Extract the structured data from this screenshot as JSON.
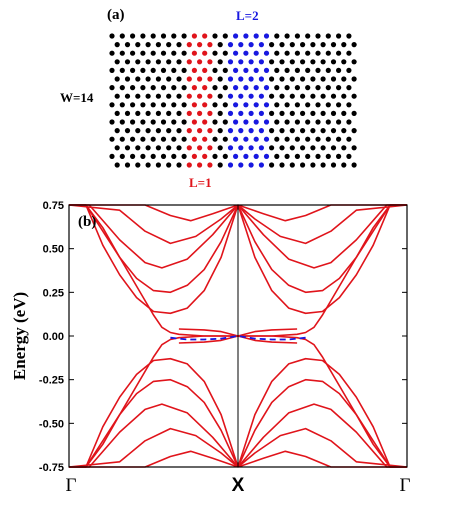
{
  "panel_a": {
    "label": "(a)",
    "width_label": "W=14",
    "left_label": "L=1",
    "top_label": "L=2",
    "colors": {
      "default": "#000000",
      "highlight_1": "#e0141b",
      "highlight_2": "#1818e0"
    }
  },
  "chart_data": {
    "type": "line",
    "panel_label": "(b)",
    "ylabel": "Energy (eV)",
    "ylim": [
      -0.75,
      0.75
    ],
    "yticks": [
      "0.75",
      "0.50",
      "0.25",
      "0.00",
      "-0.25",
      "-0.50",
      "-0.75"
    ],
    "ytick_values": [
      0.75,
      0.5,
      0.25,
      0.0,
      -0.25,
      -0.5,
      -0.75
    ],
    "xticks": [
      "Γ",
      "X",
      "Γ"
    ],
    "xtick_values": [
      0,
      1,
      2
    ],
    "xlim": [
      0,
      2
    ],
    "vertical_line_at": 1,
    "colors": {
      "bands": "#e0141b",
      "dashed": "#1818e0",
      "frame": "#000000"
    },
    "series": [
      {
        "style": "solid",
        "x": [
          0.0,
          0.1,
          0.2,
          0.3,
          0.4,
          0.5,
          0.6,
          0.7,
          0.8,
          0.9,
          1.0
        ],
        "y": [
          0.75,
          0.75,
          0.52,
          0.35,
          0.22,
          0.14,
          0.13,
          0.16,
          0.26,
          0.45,
          0.75
        ]
      },
      {
        "style": "solid",
        "x": [
          0.0,
          0.1,
          0.2,
          0.3,
          0.4,
          0.5,
          0.6,
          0.7,
          0.8,
          0.9,
          1.0
        ],
        "y": [
          0.75,
          0.75,
          0.62,
          0.45,
          0.33,
          0.26,
          0.25,
          0.29,
          0.38,
          0.54,
          0.75
        ]
      },
      {
        "style": "solid",
        "x": [
          0.0,
          0.12,
          0.3,
          0.45,
          0.55,
          0.7,
          0.85,
          1.0
        ],
        "y": [
          0.75,
          0.75,
          0.55,
          0.42,
          0.39,
          0.44,
          0.58,
          0.75
        ]
      },
      {
        "style": "solid",
        "x": [
          0.0,
          0.3,
          0.45,
          0.6,
          0.75,
          0.9,
          1.0
        ],
        "y": [
          0.75,
          0.72,
          0.6,
          0.53,
          0.57,
          0.67,
          0.75
        ]
      },
      {
        "style": "solid",
        "x": [
          0.0,
          0.45,
          0.6,
          0.72,
          0.85,
          1.0
        ],
        "y": [
          0.75,
          0.75,
          0.69,
          0.66,
          0.7,
          0.75
        ]
      },
      {
        "style": "solid",
        "x": [
          0.0,
          0.1,
          0.3,
          0.5,
          0.55,
          0.6,
          0.65,
          0.8,
          1.0
        ],
        "y": [
          0.75,
          0.75,
          0.45,
          0.12,
          0.05,
          0.02,
          0.01,
          0.0,
          0.0
        ]
      },
      {
        "style": "solid",
        "x": [
          0.0,
          0.1,
          0.3,
          0.5,
          0.55,
          0.6,
          0.65,
          0.8,
          1.0
        ],
        "y": [
          -0.75,
          -0.75,
          -0.45,
          -0.12,
          -0.05,
          -0.02,
          -0.01,
          0.0,
          0.0
        ]
      },
      {
        "style": "solid",
        "x": [
          0.65,
          0.8,
          0.9,
          1.0
        ],
        "y": [
          0.04,
          0.035,
          0.025,
          0.0
        ]
      },
      {
        "style": "solid",
        "x": [
          0.65,
          0.8,
          0.9,
          1.0
        ],
        "y": [
          -0.04,
          -0.035,
          -0.025,
          0.0
        ]
      },
      {
        "style": "solid",
        "x": [
          0.0,
          0.1,
          0.2,
          0.3,
          0.4,
          0.5,
          0.6,
          0.7,
          0.8,
          0.9,
          1.0
        ],
        "y": [
          -0.75,
          -0.75,
          -0.52,
          -0.35,
          -0.22,
          -0.14,
          -0.13,
          -0.16,
          -0.26,
          -0.45,
          -0.75
        ]
      },
      {
        "style": "solid",
        "x": [
          0.0,
          0.1,
          0.2,
          0.3,
          0.4,
          0.5,
          0.6,
          0.7,
          0.8,
          0.9,
          1.0
        ],
        "y": [
          -0.75,
          -0.75,
          -0.62,
          -0.45,
          -0.33,
          -0.26,
          -0.25,
          -0.29,
          -0.38,
          -0.54,
          -0.75
        ]
      },
      {
        "style": "solid",
        "x": [
          0.0,
          0.12,
          0.3,
          0.45,
          0.55,
          0.7,
          0.85,
          1.0
        ],
        "y": [
          -0.75,
          -0.75,
          -0.55,
          -0.42,
          -0.39,
          -0.44,
          -0.58,
          -0.75
        ]
      },
      {
        "style": "solid",
        "x": [
          0.0,
          0.3,
          0.45,
          0.6,
          0.75,
          0.9,
          1.0
        ],
        "y": [
          -0.75,
          -0.72,
          -0.6,
          -0.53,
          -0.57,
          -0.67,
          -0.75
        ]
      },
      {
        "style": "solid",
        "x": [
          0.0,
          0.45,
          0.6,
          0.72,
          0.85,
          1.0
        ],
        "y": [
          -0.75,
          -0.75,
          -0.69,
          -0.66,
          -0.7,
          -0.75
        ]
      },
      {
        "style": "dashed",
        "x": [
          0.6,
          0.7,
          0.8,
          0.9,
          1.0
        ],
        "y": [
          -0.01,
          -0.02,
          -0.02,
          -0.015,
          0.0
        ]
      }
    ]
  }
}
